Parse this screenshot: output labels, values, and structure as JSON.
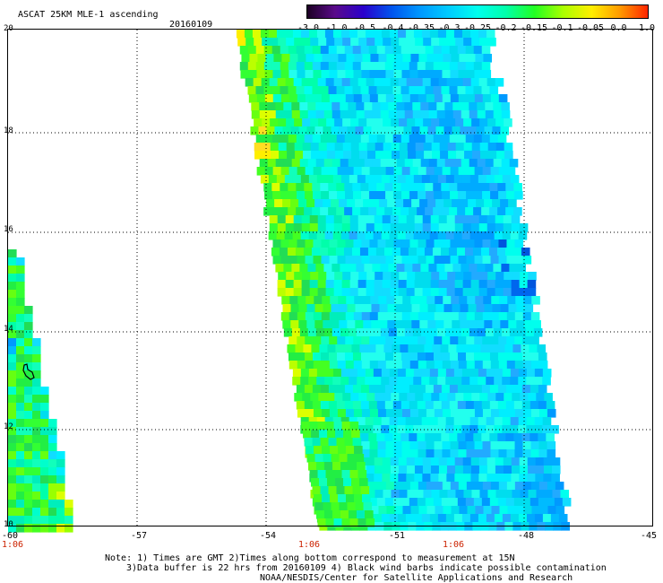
{
  "header": {
    "title": "ASCAT 25KM MLE-1 ascending",
    "date": "20160109"
  },
  "colorbar": {
    "tick_labels": [
      "-3.0",
      "-1.0",
      "-0.5",
      "-0.4",
      "-0.35",
      "-0.3",
      "-0.25",
      "-0.2",
      "-0.15",
      "-0.1",
      "-0.05",
      "0.0",
      "1.0"
    ],
    "colors": [
      "#1a0020",
      "#5a0a8a",
      "#2a00cc",
      "#0055ee",
      "#0099ff",
      "#00ccff",
      "#00ffee",
      "#00ffaa",
      "#22ff22",
      "#aaff00",
      "#ffee00",
      "#ff9900",
      "#ff2200"
    ]
  },
  "map": {
    "lat_labels": [
      "20",
      "18",
      "16",
      "14",
      "12",
      "10"
    ],
    "lon_labels": [
      "-60",
      "-57",
      "-54",
      "-51",
      "-48",
      "-45"
    ],
    "time_labels": [
      "1:06",
      "1:06",
      "1:06"
    ],
    "lon_range": [
      -60,
      -45
    ],
    "lat_range": [
      10,
      20
    ]
  },
  "notes": {
    "line1": "Note: 1) Times are GMT 2)Times along bottom correspond to measurement at 15N",
    "line2": "3)Data buffer is 22 hrs from 20160109 4) Black wind barbs indicate possible contamination",
    "line3": "NOAA/NESDIS/Center for Satellite Applications and Research"
  }
}
